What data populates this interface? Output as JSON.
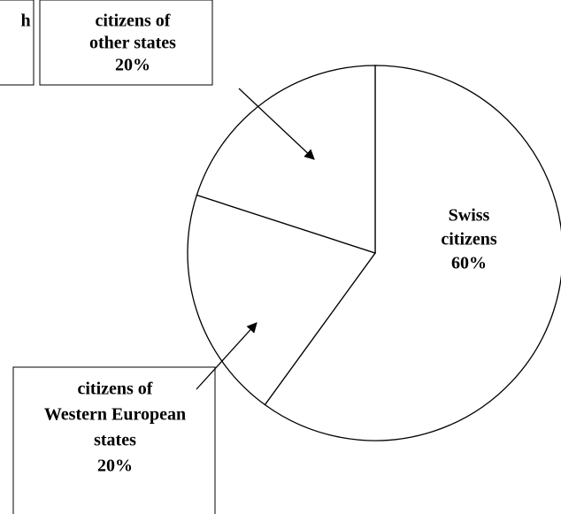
{
  "chart_data": {
    "type": "pie",
    "categories": [
      [
        "Swiss",
        "citizens"
      ],
      [
        "citizens of",
        "Western European",
        "states"
      ],
      [
        "citizens of",
        "other states"
      ]
    ],
    "values": [
      60,
      20,
      20
    ],
    "value_labels": [
      "60%",
      "20%",
      "20%"
    ],
    "colors": [
      "#ffffff",
      "#ffffff",
      "#ffffff"
    ],
    "annotations": [
      "h"
    ]
  }
}
